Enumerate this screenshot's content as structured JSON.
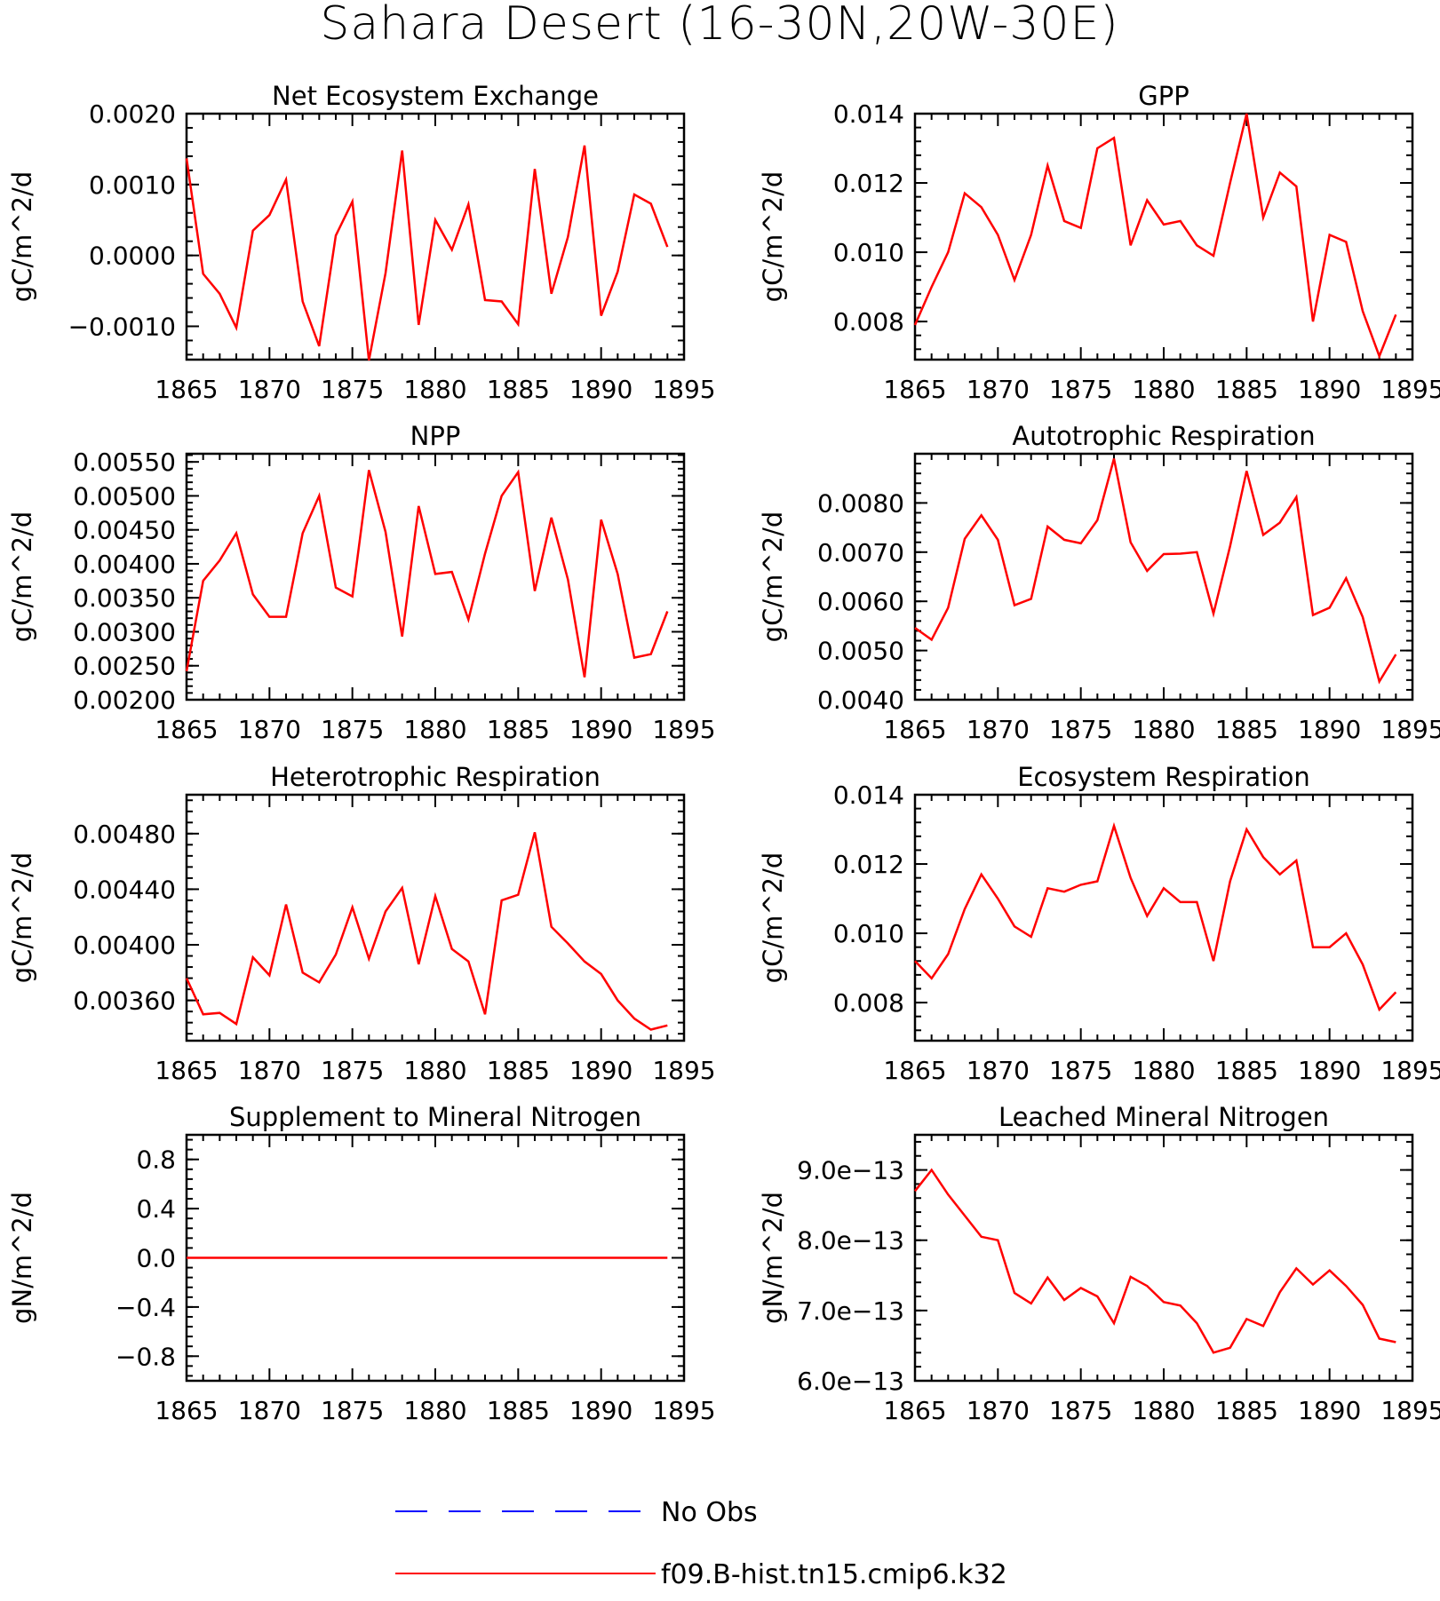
{
  "figure": {
    "title": "Sahara Desert (16-30N,20W-30E)",
    "line_color": "#ff0000",
    "obs_color": "#0000ff"
  },
  "legend": {
    "items": [
      {
        "label": "No Obs",
        "color": "#0000ff",
        "style": "dashed"
      },
      {
        "label": "f09.B-hist.tn15.cmip6.k32",
        "color": "#ff0000",
        "style": "solid"
      }
    ]
  },
  "chart_data": [
    {
      "type": "line",
      "title": "Net Ecosystem Exchange",
      "ylabel": "gC/m^2/d",
      "xlim": [
        1865,
        1895
      ],
      "xticks": [
        1865,
        1870,
        1875,
        1880,
        1885,
        1890,
        1895
      ],
      "ylim": [
        -0.00147,
        0.002
      ],
      "yticks": [
        -0.001,
        0.0,
        0.001,
        0.002
      ],
      "ytick_labels": [
        "-0.0010",
        "0.0000",
        "0.0010",
        "0.0020"
      ],
      "x": [
        1865,
        1866,
        1867,
        1868,
        1869,
        1870,
        1871,
        1872,
        1873,
        1874,
        1875,
        1876,
        1877,
        1878,
        1879,
        1880,
        1881,
        1882,
        1883,
        1884,
        1885,
        1886,
        1887,
        1888,
        1889,
        1890,
        1891,
        1892,
        1893,
        1894
      ],
      "series": [
        {
          "name": "f09.B-hist.tn15.cmip6.k32",
          "values": [
            0.00137,
            -0.00026,
            -0.00054,
            -0.00102,
            0.00035,
            0.00057,
            0.00107,
            -0.00065,
            -0.00128,
            0.00028,
            0.00076,
            -0.00148,
            -0.00025,
            0.00148,
            -0.00098,
            0.0005,
            8e-05,
            0.00072,
            -0.00063,
            -0.00065,
            -0.00097,
            0.00122,
            -0.00054,
            0.00026,
            0.00155,
            -0.00085,
            -0.00023,
            0.00086,
            0.00073,
            0.00012
          ]
        }
      ]
    },
    {
      "type": "line",
      "title": "GPP",
      "ylabel": "gC/m^2/d",
      "xlim": [
        1865,
        1895
      ],
      "xticks": [
        1865,
        1870,
        1875,
        1880,
        1885,
        1890,
        1895
      ],
      "ylim": [
        0.0069,
        0.014
      ],
      "yticks": [
        0.008,
        0.01,
        0.012,
        0.014
      ],
      "ytick_labels": [
        "0.008",
        "0.010",
        "0.012",
        "0.014"
      ],
      "x": [
        1865,
        1866,
        1867,
        1868,
        1869,
        1870,
        1871,
        1872,
        1873,
        1874,
        1875,
        1876,
        1877,
        1878,
        1879,
        1880,
        1881,
        1882,
        1883,
        1884,
        1885,
        1886,
        1887,
        1888,
        1889,
        1890,
        1891,
        1892,
        1893,
        1894
      ],
      "series": [
        {
          "name": "f09.B-hist.tn15.cmip6.k32",
          "values": [
            0.0079,
            0.009,
            0.01,
            0.0117,
            0.0113,
            0.0105,
            0.0092,
            0.0105,
            0.0125,
            0.0109,
            0.0107,
            0.013,
            0.0133,
            0.0102,
            0.0115,
            0.0108,
            0.0109,
            0.0102,
            0.0099,
            0.012,
            0.014,
            0.011,
            0.0123,
            0.0119,
            0.008,
            0.0105,
            0.0103,
            0.0083,
            0.007,
            0.0082
          ]
        }
      ]
    },
    {
      "type": "line",
      "title": "NPP",
      "ylabel": "gC/m^2/d",
      "xlim": [
        1865,
        1895
      ],
      "xticks": [
        1865,
        1870,
        1875,
        1880,
        1885,
        1890,
        1895
      ],
      "ylim": [
        0.002,
        0.00562
      ],
      "yticks": [
        0.002,
        0.0025,
        0.003,
        0.0035,
        0.004,
        0.0045,
        0.005,
        0.0055
      ],
      "ytick_labels": [
        "0.00200",
        "0.00250",
        "0.00300",
        "0.00350",
        "0.00400",
        "0.00450",
        "0.00500",
        "0.00550"
      ],
      "x": [
        1865,
        1866,
        1867,
        1868,
        1869,
        1870,
        1871,
        1872,
        1873,
        1874,
        1875,
        1876,
        1877,
        1878,
        1879,
        1880,
        1881,
        1882,
        1883,
        1884,
        1885,
        1886,
        1887,
        1888,
        1889,
        1890,
        1891,
        1892,
        1893,
        1894
      ],
      "series": [
        {
          "name": "f09.B-hist.tn15.cmip6.k32",
          "values": [
            0.00242,
            0.00375,
            0.00405,
            0.00445,
            0.00355,
            0.00322,
            0.00322,
            0.00445,
            0.005,
            0.00365,
            0.00352,
            0.00538,
            0.00447,
            0.00293,
            0.00485,
            0.00385,
            0.00388,
            0.00318,
            0.00415,
            0.005,
            0.00535,
            0.0036,
            0.00468,
            0.00377,
            0.00233,
            0.00465,
            0.00385,
            0.00262,
            0.00267,
            0.0033
          ]
        }
      ]
    },
    {
      "type": "line",
      "title": "Autotrophic Respiration",
      "ylabel": "gC/m^2/d",
      "xlim": [
        1865,
        1895
      ],
      "xticks": [
        1865,
        1870,
        1875,
        1880,
        1885,
        1890,
        1895
      ],
      "ylim": [
        0.004,
        0.009
      ],
      "yticks": [
        0.004,
        0.005,
        0.006,
        0.007,
        0.008
      ],
      "ytick_labels": [
        "0.0040",
        "0.0050",
        "0.0060",
        "0.0070",
        "0.0080"
      ],
      "x": [
        1865,
        1866,
        1867,
        1868,
        1869,
        1870,
        1871,
        1872,
        1873,
        1874,
        1875,
        1876,
        1877,
        1878,
        1879,
        1880,
        1881,
        1882,
        1883,
        1884,
        1885,
        1886,
        1887,
        1888,
        1889,
        1890,
        1891,
        1892,
        1893,
        1894
      ],
      "series": [
        {
          "name": "f09.B-hist.tn15.cmip6.k32",
          "values": [
            0.00546,
            0.00522,
            0.00587,
            0.00727,
            0.00775,
            0.00725,
            0.00592,
            0.00605,
            0.00752,
            0.00725,
            0.00718,
            0.00765,
            0.0089,
            0.0072,
            0.00662,
            0.00696,
            0.00697,
            0.007,
            0.00575,
            0.00712,
            0.00865,
            0.00735,
            0.0076,
            0.00812,
            0.00572,
            0.00587,
            0.00647,
            0.00568,
            0.00437,
            0.00492
          ]
        }
      ]
    },
    {
      "type": "line",
      "title": "Heterotrophic Respiration",
      "ylabel": "gC/m^2/d",
      "xlim": [
        1865,
        1895
      ],
      "xticks": [
        1865,
        1870,
        1875,
        1880,
        1885,
        1890,
        1895
      ],
      "ylim": [
        0.00331,
        0.00508
      ],
      "yticks": [
        0.0036,
        0.004,
        0.0044,
        0.0048
      ],
      "ytick_labels": [
        "0.00360",
        "0.00400",
        "0.00440",
        "0.00480"
      ],
      "x": [
        1865,
        1866,
        1867,
        1868,
        1869,
        1870,
        1871,
        1872,
        1873,
        1874,
        1875,
        1876,
        1877,
        1878,
        1879,
        1880,
        1881,
        1882,
        1883,
        1884,
        1885,
        1886,
        1887,
        1888,
        1889,
        1890,
        1891,
        1892,
        1893,
        1894
      ],
      "series": [
        {
          "name": "f09.B-hist.tn15.cmip6.k32",
          "values": [
            0.00376,
            0.0035,
            0.00351,
            0.00343,
            0.00391,
            0.00378,
            0.00429,
            0.0038,
            0.00373,
            0.00393,
            0.00427,
            0.0039,
            0.00424,
            0.00441,
            0.00386,
            0.00435,
            0.00397,
            0.00388,
            0.0035,
            0.00432,
            0.00436,
            0.00481,
            0.00413,
            0.00401,
            0.00388,
            0.00379,
            0.0036,
            0.00347,
            0.00339,
            0.00342
          ]
        }
      ]
    },
    {
      "type": "line",
      "title": "Ecosystem Respiration",
      "ylabel": "gC/m^2/d",
      "xlim": [
        1865,
        1895
      ],
      "xticks": [
        1865,
        1870,
        1875,
        1880,
        1885,
        1890,
        1895
      ],
      "ylim": [
        0.0069,
        0.014
      ],
      "yticks": [
        0.008,
        0.01,
        0.012,
        0.014
      ],
      "ytick_labels": [
        "0.008",
        "0.010",
        "0.012",
        "0.014"
      ],
      "x": [
        1865,
        1866,
        1867,
        1868,
        1869,
        1870,
        1871,
        1872,
        1873,
        1874,
        1875,
        1876,
        1877,
        1878,
        1879,
        1880,
        1881,
        1882,
        1883,
        1884,
        1885,
        1886,
        1887,
        1888,
        1889,
        1890,
        1891,
        1892,
        1893,
        1894
      ],
      "series": [
        {
          "name": "f09.B-hist.tn15.cmip6.k32",
          "values": [
            0.0092,
            0.0087,
            0.0094,
            0.0107,
            0.0117,
            0.011,
            0.0102,
            0.0099,
            0.0113,
            0.0112,
            0.0114,
            0.0115,
            0.0131,
            0.0116,
            0.0105,
            0.0113,
            0.0109,
            0.0109,
            0.0092,
            0.0115,
            0.013,
            0.0122,
            0.0117,
            0.0121,
            0.0096,
            0.0096,
            0.01,
            0.0091,
            0.0078,
            0.0083
          ]
        }
      ]
    },
    {
      "type": "line",
      "title": "Supplement to Mineral Nitrogen",
      "ylabel": "gN/m^2/d",
      "xlim": [
        1865,
        1895
      ],
      "xticks": [
        1865,
        1870,
        1875,
        1880,
        1885,
        1890,
        1895
      ],
      "ylim": [
        -1.0,
        1.0
      ],
      "yticks": [
        -0.8,
        -0.4,
        0.0,
        0.4,
        0.8
      ],
      "ytick_labels": [
        "-0.8",
        "-0.4",
        "0.0",
        "0.4",
        "0.8"
      ],
      "x": [
        1865,
        1866,
        1867,
        1868,
        1869,
        1870,
        1871,
        1872,
        1873,
        1874,
        1875,
        1876,
        1877,
        1878,
        1879,
        1880,
        1881,
        1882,
        1883,
        1884,
        1885,
        1886,
        1887,
        1888,
        1889,
        1890,
        1891,
        1892,
        1893,
        1894
      ],
      "series": [
        {
          "name": "f09.B-hist.tn15.cmip6.k32",
          "values": [
            0,
            0,
            0,
            0,
            0,
            0,
            0,
            0,
            0,
            0,
            0,
            0,
            0,
            0,
            0,
            0,
            0,
            0,
            0,
            0,
            0,
            0,
            0,
            0,
            0,
            0,
            0,
            0,
            0,
            0
          ]
        }
      ]
    },
    {
      "type": "line",
      "title": "Leached Mineral Nitrogen",
      "ylabel": "gN/m^2/d",
      "xlim": [
        1865,
        1895
      ],
      "xticks": [
        1865,
        1870,
        1875,
        1880,
        1885,
        1890,
        1895
      ],
      "ylim": [
        6e-13,
        9.5e-13
      ],
      "yticks": [
        6e-13,
        7e-13,
        8e-13,
        9e-13
      ],
      "ytick_labels": [
        "6.0e-13",
        "7.0e-13",
        "8.0e-13",
        "9.0e-13"
      ],
      "x": [
        1865,
        1866,
        1867,
        1868,
        1869,
        1870,
        1871,
        1872,
        1873,
        1874,
        1875,
        1876,
        1877,
        1878,
        1879,
        1880,
        1881,
        1882,
        1883,
        1884,
        1885,
        1886,
        1887,
        1888,
        1889,
        1890,
        1891,
        1892,
        1893,
        1894
      ],
      "series": [
        {
          "name": "f09.B-hist.tn15.cmip6.k32",
          "values": [
            8.7e-13,
            9e-13,
            8.65e-13,
            8.35e-13,
            8.05e-13,
            8e-13,
            7.25e-13,
            7.1e-13,
            7.47e-13,
            7.15e-13,
            7.32e-13,
            7.2e-13,
            6.82e-13,
            7.48e-13,
            7.35e-13,
            7.12e-13,
            7.07e-13,
            6.82e-13,
            6.4e-13,
            6.47e-13,
            6.88e-13,
            6.78e-13,
            7.26e-13,
            7.6e-13,
            7.37e-13,
            7.57e-13,
            7.35e-13,
            7.08e-13,
            6.6e-13,
            6.55e-13
          ]
        }
      ]
    }
  ]
}
